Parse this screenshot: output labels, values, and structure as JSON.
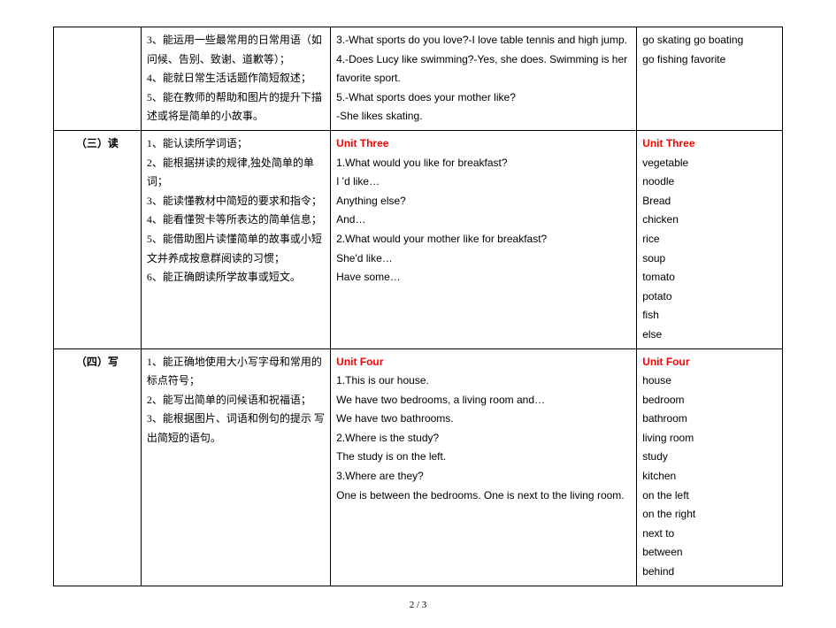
{
  "rows": [
    {
      "section": "",
      "col2": [
        "3、能运用一些最常用的日常用语（如问候、告别、致谢、道歉等）；",
        "4、能就日常生活话题作简短叙述；",
        "5、能在教师的帮助和图片的提升下描述或将是简单的小故事。"
      ],
      "col3": [
        "3.-What sports do you love?-I love table tennis and high jump.",
        "4.-Does  Lucy  like  swimming?-Yes,  she  does. Swimming is her favorite sport.",
        "5.-What sports does your mother like?",
        "   -She likes skating."
      ],
      "col4": [
        "go skating    go boating",
        "go fishing    favorite"
      ]
    },
    {
      "section": "（三）读",
      "col2": [
        "1、能认读所学词语；",
        "2、能根据拼读的规律,独处简单的单词；",
        "3、能读懂教材中简短的要求和指令；",
        "4、能看懂贺卡等所表达的简单信息；",
        "5、能借助图片读懂简单的故事或小短文并养成按意群阅读的习惯；",
        "6、能正确朗读所学故事或短文。"
      ],
      "col3_title": "Unit Three",
      "col3": [
        "1.What would you like for breakfast?",
        "I 'd like…",
        "Anything else?",
        "And…",
        "2.What would your mother like for breakfast?",
        "She'd like…",
        "Have some…"
      ],
      "col4_title": "Unit Three",
      "col4": [
        "vegetable",
        "noodle",
        "Bread",
        "chicken",
        "rice",
        "soup",
        "tomato",
        "potato",
        "fish",
        "else"
      ]
    },
    {
      "section": "（四）写",
      "col2": [
        "1、能正确地使用大小写字母和常用的标点符号；",
        "2、能写出简单的问候语和祝福语；",
        "3、能根据图片、词语和例句的提示 写出简短的语句。"
      ],
      "col3_title": "Unit Four",
      "col3": [
        "1.This is our house.",
        "We have two bedrooms, a living room and…",
        "We have two bathrooms.",
        "2.Where is the study?",
        "The study is on the left.",
        "3.Where are they?",
        "One is between the bedrooms. One is next to the living room."
      ],
      "col4_title": "Unit Four",
      "col4": [
        "house",
        "bedroom",
        "bathroom",
        "living room",
        "study",
        "kitchen",
        "on the left",
        "on the right",
        "next to",
        "between",
        "behind"
      ]
    }
  ],
  "pageNum": "2 / 3"
}
